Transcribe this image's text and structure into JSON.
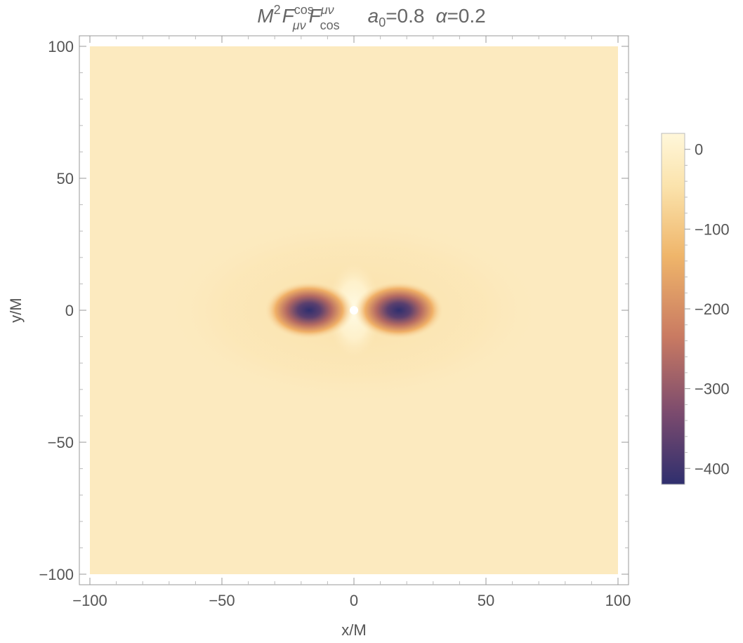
{
  "chart_data": {
    "type": "heatmap",
    "title": {
      "main": "M",
      "main_sup": "2",
      "field1": "F",
      "field1_sub": "μν",
      "field1_sup": "cos",
      "field2": "F",
      "field2_sub": "cos",
      "field2_sup": "μν",
      "param1": "a",
      "param1_sub": "0",
      "param1_value": "=0.8",
      "param2": "α",
      "param2_value": "=0.2"
    },
    "xlabel": "x/M",
    "ylabel": "y/M",
    "xlim": [
      -100,
      100
    ],
    "ylim": [
      -100,
      100
    ],
    "x_ticks": [
      -100,
      -50,
      0,
      50,
      100
    ],
    "y_ticks": [
      -100,
      -50,
      0,
      50,
      100
    ],
    "x_tick_labels": [
      "−100",
      "−50",
      "0",
      "50",
      "100"
    ],
    "y_tick_labels": [
      "−100",
      "−50",
      "0",
      "50",
      "100"
    ],
    "colorbar": {
      "range": [
        -420,
        20
      ],
      "ticks": [
        0,
        -100,
        -200,
        -300,
        -400
      ],
      "tick_labels": [
        "0",
        "−100",
        "−200",
        "−300",
        "−400"
      ],
      "colors": [
        "#2f2f6e",
        "#7a4a6e",
        "#c97a62",
        "#efb56a",
        "#fbe3ac",
        "#fff7da"
      ]
    },
    "features": {
      "background_value": -30,
      "minimum_value": -420,
      "lobe_centers_x": [
        -17,
        17
      ],
      "lobe_center_y": 0,
      "central_point_x": 0,
      "central_point_y": 0
    }
  }
}
